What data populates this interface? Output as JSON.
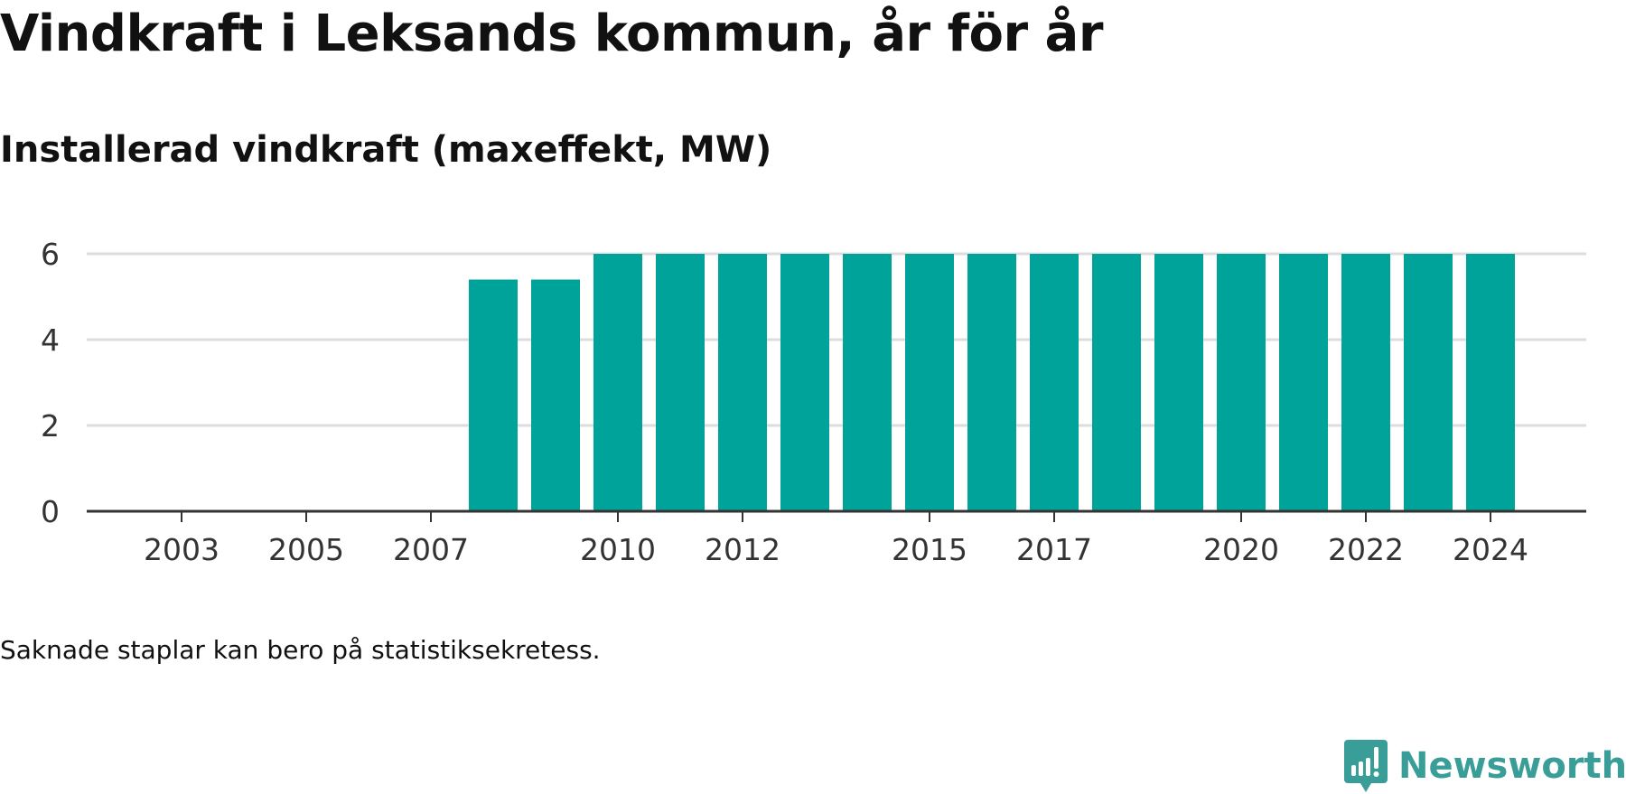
{
  "title": "Vindkraft i Leksands kommun, år för år",
  "subtitle": "Installerad vindkraft (maxeffekt, MW)",
  "note": "Saknade staplar kan bero på statistiksekretess.",
  "brand": {
    "name": "Newsworthy",
    "color": "#3a9e98",
    "icon": "newsworthy-logo-icon"
  },
  "colors": {
    "bar": "#00a39a",
    "grid": "#dddddd",
    "axis": "#333333"
  },
  "chart_data": {
    "type": "bar",
    "title": "Vindkraft i Leksands kommun, år för år",
    "subtitle": "Installerad vindkraft (maxeffekt, MW)",
    "xlabel": "",
    "ylabel": "",
    "categories": [
      "2002",
      "2003",
      "2004",
      "2005",
      "2006",
      "2007",
      "2008",
      "2009",
      "2010",
      "2011",
      "2012",
      "2013",
      "2014",
      "2015",
      "2016",
      "2017",
      "2018",
      "2019",
      "2020",
      "2021",
      "2022",
      "2023",
      "2024"
    ],
    "values": [
      0,
      0,
      0,
      0,
      0,
      0,
      5.4,
      5.4,
      6,
      6,
      6,
      6,
      6,
      6,
      6,
      6,
      6,
      6,
      6,
      6,
      6,
      6,
      6
    ],
    "x_tick_labels": [
      "2003",
      "2005",
      "2007",
      "2010",
      "2012",
      "2015",
      "2017",
      "2020",
      "2022",
      "2024"
    ],
    "y_ticks": [
      0,
      2,
      4,
      6
    ],
    "ylim": [
      0,
      6.2
    ],
    "grid": true,
    "legend": "none"
  }
}
